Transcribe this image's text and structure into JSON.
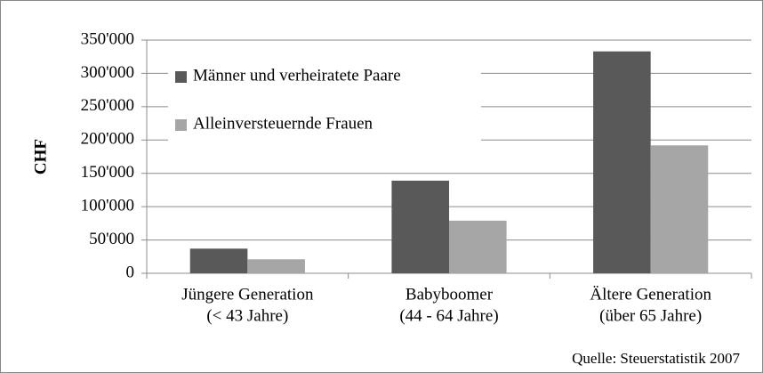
{
  "chart_data": {
    "type": "bar",
    "y_label": "CHF",
    "source": "Quelle: Steuerstatistik 2007",
    "categories": [
      [
        "Jüngere Generation",
        "(< 43 Jahre)"
      ],
      [
        "Babyboomer",
        "(44 - 64 Jahre)"
      ],
      [
        "Ältere Generation",
        "(über 65 Jahre)"
      ]
    ],
    "series": [
      {
        "name": "Männer und verheiratete Paare",
        "color": "#595959",
        "values": [
          37000,
          139000,
          333000
        ]
      },
      {
        "name": "Alleinversteuernde Frauen",
        "color": "#a6a6a6",
        "values": [
          21000,
          79000,
          192000
        ]
      }
    ],
    "ylim": [
      0,
      350000
    ],
    "yticks": [
      0,
      {
        "value": 50000,
        "label": "50'000"
      },
      {
        "value": 100000,
        "label": "100'000"
      },
      {
        "value": 150000,
        "label": "150'000"
      },
      {
        "value": 200000,
        "label": "200'000"
      },
      {
        "value": 250000,
        "label": "250'000"
      },
      {
        "value": 300000,
        "label": "300'000"
      },
      {
        "value": 350000,
        "label": "350'000"
      }
    ],
    "grid": true,
    "legend": "upper-left"
  }
}
